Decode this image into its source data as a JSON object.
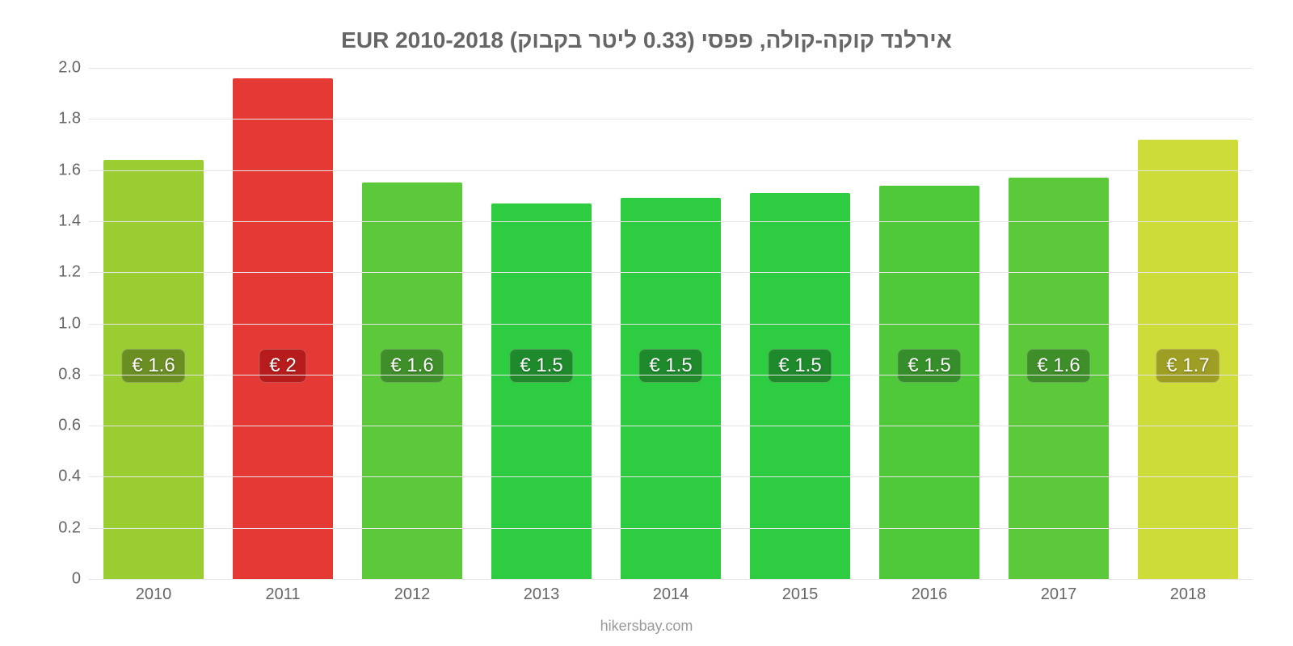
{
  "chart": {
    "type": "bar",
    "title": "אירלנד קוקה-קולה, פפסי (0.33 ליטר בקבוק) EUR 2010-2018",
    "title_color": "#666666",
    "title_fontsize": 28,
    "background_color": "#ffffff",
    "grid_color": "#e6e6e6",
    "axis_label_color": "#666666",
    "axis_label_fontsize": 20,
    "ylim": [
      0,
      2.0
    ],
    "yticks": [
      0,
      0.2,
      0.4,
      0.6,
      0.8,
      1.0,
      1.2,
      1.4,
      1.6,
      1.8,
      2.0
    ],
    "ytick_labels": [
      "0",
      "0.2",
      "0.4",
      "0.6",
      "0.8",
      "1.0",
      "1.2",
      "1.4",
      "1.6",
      "1.8",
      "2.0"
    ],
    "categories": [
      "2010",
      "2011",
      "2012",
      "2013",
      "2014",
      "2015",
      "2016",
      "2017",
      "2018"
    ],
    "values": [
      1.64,
      1.96,
      1.55,
      1.47,
      1.49,
      1.51,
      1.54,
      1.57,
      1.72
    ],
    "bar_labels": [
      "€ 1.6",
      "€ 2",
      "€ 1.6",
      "€ 1.5",
      "€ 1.5",
      "€ 1.5",
      "€ 1.5",
      "€ 1.6",
      "€ 1.7"
    ],
    "bar_colors": [
      "#9acd32",
      "#e53935",
      "#5cc93a",
      "#2ecc40",
      "#2ecc40",
      "#2ecc40",
      "#4fc93a",
      "#5cc93a",
      "#cddc39"
    ],
    "badge_colors": [
      "#6b8e23",
      "#b71c1c",
      "#3e8e29",
      "#1e8a2c",
      "#1e8a2c",
      "#1e8a2c",
      "#358e29",
      "#3e8e29",
      "#9e9d24"
    ],
    "badge_text_color": "#ffffff",
    "badge_fontsize": 24,
    "bar_width": 0.78,
    "attribution": "hikersbay.com",
    "attribution_color": "#999999"
  }
}
